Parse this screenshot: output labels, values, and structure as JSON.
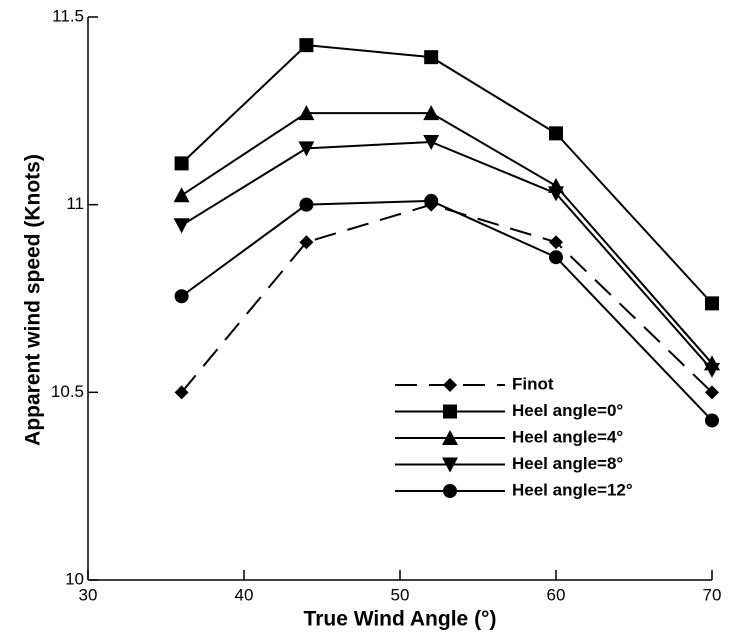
{
  "chart_data": {
    "type": "line",
    "xlabel": "True Wind Angle (°)",
    "ylabel": "Apparent wind speed (Knots)",
    "x": [
      36,
      44,
      52,
      60,
      70
    ],
    "series": [
      {
        "name": "Finot",
        "color": "#000000",
        "linestyle": "dashed",
        "marker": "diamond",
        "values": [
          10.5,
          10.9,
          11.0,
          10.9,
          10.5
        ]
      },
      {
        "name": "Heel angle=0°",
        "color": "#000000",
        "linestyle": "solid",
        "marker": "square",
        "values": [
          11.11,
          11.425,
          11.393,
          11.19,
          10.737
        ]
      },
      {
        "name": "Heel angle=4°",
        "color": "#000000",
        "linestyle": "solid",
        "marker": "triangle-up",
        "values": [
          11.025,
          11.244,
          11.244,
          11.05,
          10.577
        ]
      },
      {
        "name": "Heel angle=8°",
        "color": "#000000",
        "linestyle": "solid",
        "marker": "triangle-down",
        "values": [
          10.945,
          11.15,
          11.167,
          11.03,
          10.56
        ]
      },
      {
        "name": "Heel angle=12°",
        "color": "#000000",
        "linestyle": "solid",
        "marker": "circle",
        "values": [
          10.756,
          11.0,
          11.01,
          10.86,
          10.425
        ]
      }
    ],
    "xlim": [
      30,
      70
    ],
    "xticks": [
      30,
      40,
      50,
      60,
      70
    ],
    "ylim": [
      10,
      11.5
    ],
    "yticks": [
      10,
      10.5,
      11,
      11.5
    ],
    "legend": "lower right",
    "grid": false
  }
}
